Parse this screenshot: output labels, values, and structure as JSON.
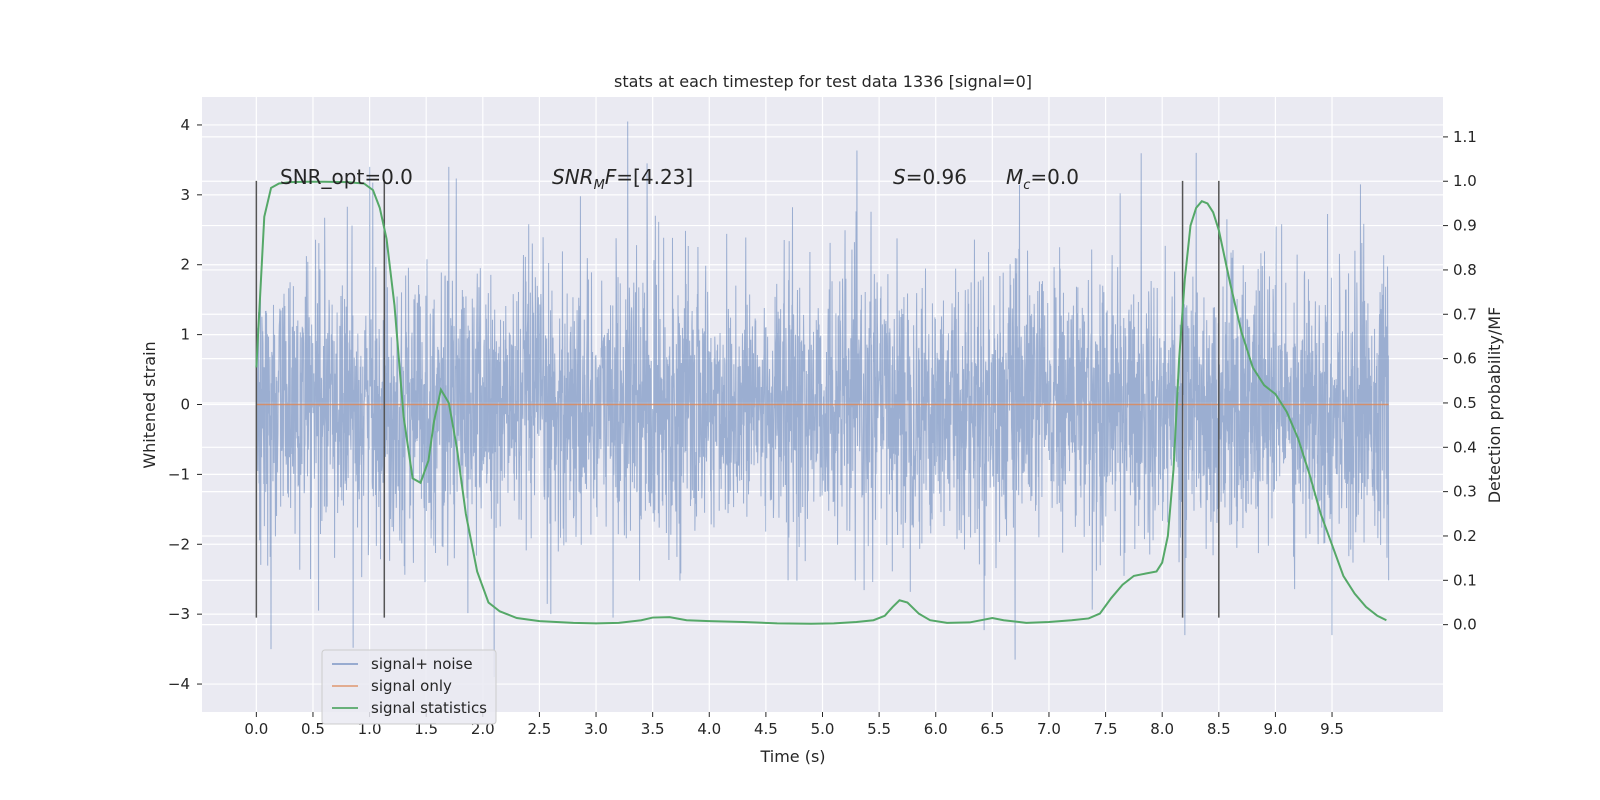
{
  "chart_data": {
    "type": "line",
    "title": "stats at each timestep for test data 1336 [signal=0]",
    "xlabel": "Time (s)",
    "ylabel": "Whitened strain",
    "ylabel_right": "Detection probability/MF",
    "xlim": [
      -0.48,
      10.48
    ],
    "ylim": [
      -4.4,
      4.4
    ],
    "ylim_right": [
      -0.197,
      1.19
    ],
    "x_ticks": [
      "0.0",
      "0.5",
      "1.0",
      "1.5",
      "2.0",
      "2.5",
      "3.0",
      "3.5",
      "4.0",
      "4.5",
      "5.0",
      "5.5",
      "6.0",
      "6.5",
      "7.0",
      "7.5",
      "8.0",
      "8.5",
      "9.0",
      "9.5"
    ],
    "y_ticks": [
      "4",
      "3",
      "2",
      "1",
      "0",
      "−1",
      "−2",
      "−3",
      "−4"
    ],
    "y_right_ticks": [
      "1.1",
      "1.0",
      "0.9",
      "0.8",
      "0.7",
      "0.6",
      "0.5",
      "0.4",
      "0.3",
      "0.2",
      "0.1",
      "0.0"
    ],
    "grid": true,
    "legend_position": "lower-left",
    "annotations": {
      "snr_opt": "SNR_opt=0.0",
      "snr_mf_sym": "SNR",
      "snr_mf_sub": "M",
      "snr_mf_sym2": "F",
      "snr_mf_val": "=[4.23]",
      "s_sym": "S",
      "s_val": "=0.96",
      "mc_sym": "M",
      "mc_sub": "c",
      "mc_val": "=0.0"
    },
    "vertical_markers_x": [
      0.0,
      1.13,
      8.18,
      8.5
    ],
    "vertical_markers_range": [
      -3.05,
      3.2
    ],
    "noise": {
      "x_range": [
        0.0,
        10.0
      ],
      "points": 4096,
      "envelope_min": -3.6,
      "envelope_max": 4.05,
      "peaks": [
        {
          "x": 0.13,
          "y": -3.5
        },
        {
          "x": 1.0,
          "y": 3.4
        },
        {
          "x": 1.7,
          "y": 3.4
        },
        {
          "x": 2.1,
          "y": -3.9
        },
        {
          "x": 3.28,
          "y": 4.05
        },
        {
          "x": 3.45,
          "y": 3.45
        },
        {
          "x": 6.7,
          "y": -3.65
        },
        {
          "x": 8.3,
          "y": 3.6
        },
        {
          "x": 8.2,
          "y": -3.3
        },
        {
          "x": 9.5,
          "y": -3.3
        },
        {
          "x": 9.75,
          "y": 3.15
        },
        {
          "x": 0.55,
          "y": -2.95
        },
        {
          "x": 2.6,
          "y": -3.0
        },
        {
          "x": 3.15,
          "y": -3.05
        }
      ]
    },
    "series": [
      {
        "name": "signal+ noise",
        "color": "#4c72b0"
      },
      {
        "name": "signal only",
        "color": "#dd8452",
        "x": [
          0.0,
          10.0
        ],
        "y": [
          0.0,
          0.0
        ]
      },
      {
        "name": "signal statistics",
        "color": "#55a868",
        "x": [
          0.0,
          0.07,
          0.13,
          0.2,
          0.3,
          0.45,
          0.6,
          0.8,
          0.95,
          1.03,
          1.09,
          1.15,
          1.22,
          1.3,
          1.38,
          1.45,
          1.52,
          1.57,
          1.63,
          1.7,
          1.77,
          1.85,
          1.95,
          2.05,
          2.15,
          2.3,
          2.5,
          2.8,
          3.0,
          3.2,
          3.4,
          3.5,
          3.65,
          3.8,
          4.0,
          4.3,
          4.6,
          4.9,
          5.1,
          5.3,
          5.45,
          5.55,
          5.62,
          5.68,
          5.75,
          5.85,
          5.95,
          6.1,
          6.3,
          6.5,
          6.6,
          6.8,
          7.0,
          7.2,
          7.35,
          7.45,
          7.55,
          7.65,
          7.75,
          7.85,
          7.95,
          8.0,
          8.05,
          8.1,
          8.15,
          8.2,
          8.25,
          8.3,
          8.35,
          8.4,
          8.45,
          8.5,
          8.55,
          8.6,
          8.7,
          8.8,
          8.9,
          9.0,
          9.1,
          9.2,
          9.3,
          9.4,
          9.5,
          9.6,
          9.7,
          9.8,
          9.9,
          9.98
        ],
        "y": [
          0.58,
          0.92,
          0.985,
          0.995,
          0.998,
          0.999,
          0.999,
          0.998,
          0.995,
          0.98,
          0.94,
          0.87,
          0.72,
          0.47,
          0.33,
          0.32,
          0.37,
          0.46,
          0.53,
          0.5,
          0.4,
          0.25,
          0.12,
          0.05,
          0.03,
          0.015,
          0.008,
          0.004,
          0.003,
          0.004,
          0.01,
          0.016,
          0.017,
          0.01,
          0.008,
          0.006,
          0.003,
          0.002,
          0.003,
          0.006,
          0.01,
          0.02,
          0.04,
          0.055,
          0.05,
          0.025,
          0.01,
          0.004,
          0.005,
          0.015,
          0.01,
          0.004,
          0.006,
          0.01,
          0.014,
          0.025,
          0.06,
          0.09,
          0.11,
          0.115,
          0.12,
          0.14,
          0.2,
          0.35,
          0.6,
          0.78,
          0.9,
          0.94,
          0.955,
          0.95,
          0.93,
          0.89,
          0.83,
          0.77,
          0.66,
          0.58,
          0.54,
          0.52,
          0.48,
          0.42,
          0.34,
          0.25,
          0.18,
          0.11,
          0.07,
          0.04,
          0.02,
          0.01
        ]
      }
    ]
  }
}
